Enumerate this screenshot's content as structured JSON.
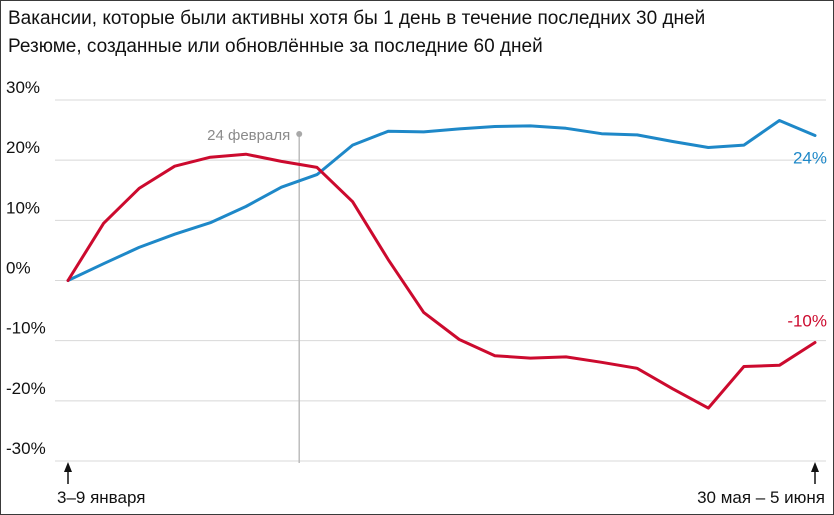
{
  "chart_data": {
    "type": "line",
    "title": "",
    "xlabel": "",
    "ylabel": "",
    "ylim": [
      -30,
      30
    ],
    "yticks": [
      30,
      20,
      10,
      0,
      -10,
      -20,
      -30
    ],
    "ytick_labels": [
      "30%",
      "20%",
      "10%",
      "0%",
      "-10%",
      "-20%",
      "-30%"
    ],
    "grid": true,
    "x_start_label": "3–9 января",
    "x_end_label": "30 мая – 5 июня",
    "annotation": {
      "label": "24 февраля",
      "x_index": 7.5
    },
    "x": [
      1,
      2,
      3,
      4,
      5,
      6,
      7,
      8,
      9,
      10,
      11,
      12,
      13,
      14,
      15,
      16,
      17,
      18,
      19,
      20,
      21,
      22
    ],
    "series": [
      {
        "name": "Вакансии, которые были активны хотя бы 1 день в течение последних 30 дней",
        "color": "#1e88c8",
        "end_label": "24%",
        "values": [
          0,
          2.8,
          5.5,
          7.7,
          9.6,
          12.3,
          15.5,
          17.6,
          22.5,
          24.8,
          24.7,
          25.2,
          25.6,
          25.7,
          25.3,
          24.4,
          24.2,
          23.1,
          22.1,
          22.5,
          26.6,
          24.1
        ]
      },
      {
        "name": "Резюме, созданные или обновлённые за последние 60 дней",
        "color": "#cc0a2e",
        "end_label": "-10%",
        "values": [
          0,
          9.5,
          15.3,
          19.0,
          20.5,
          21.0,
          19.8,
          18.8,
          13.1,
          3.5,
          -5.3,
          -9.8,
          -12.5,
          -12.9,
          -12.7,
          -13.6,
          -14.6,
          -18.0,
          -21.2,
          -14.3,
          -14.1,
          -10.3
        ]
      }
    ]
  }
}
